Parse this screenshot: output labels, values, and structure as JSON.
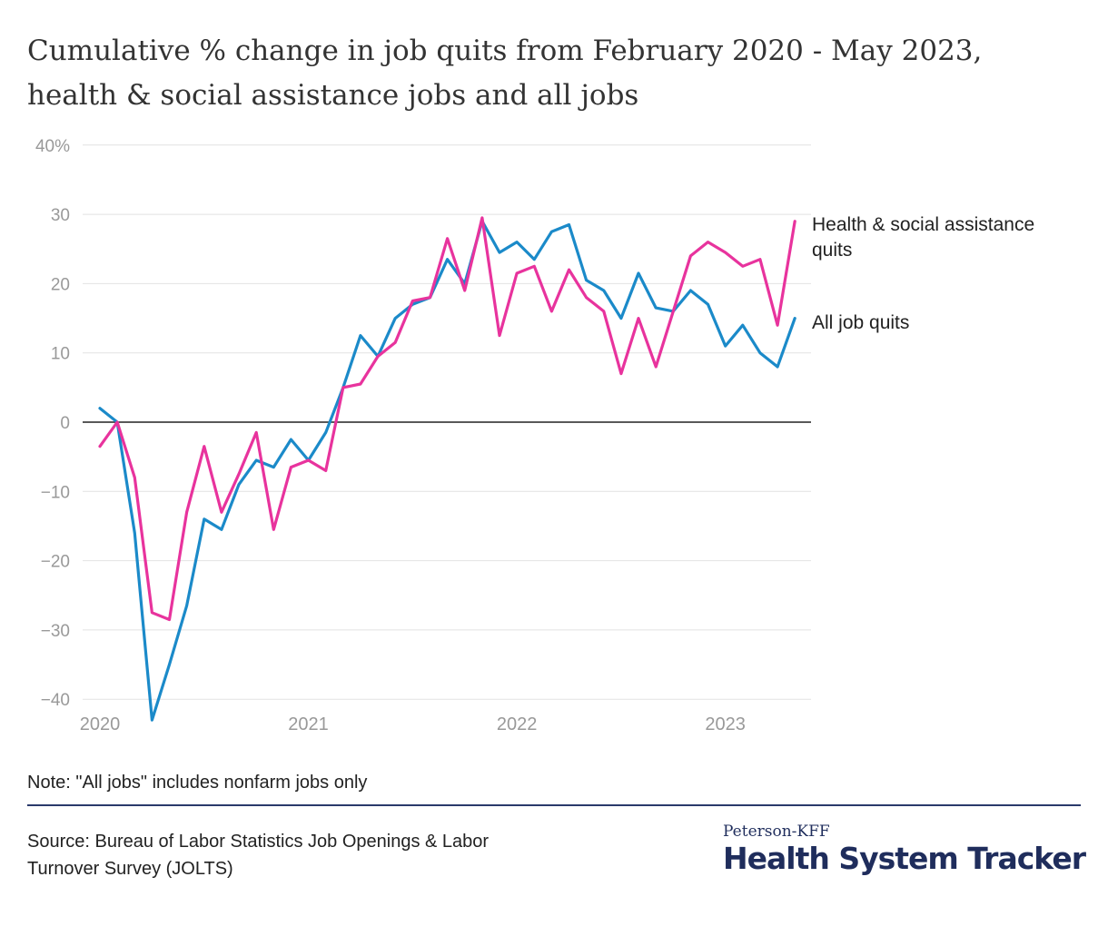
{
  "title": {
    "line1": "Cumulative % change in job quits from February 2020 - May 2023,",
    "line2": "health & social assistance jobs and all jobs"
  },
  "note": "Note: \"All jobs\" includes nonfarm jobs only",
  "source": {
    "line1": "Source: Bureau of Labor Statistics Job Openings & Labor",
    "line2": "Turnover Survey (JOLTS)"
  },
  "brand": {
    "top": "Peterson-KFF",
    "main": "Health System Tracker",
    "color": "#1f2d5c"
  },
  "chart_data": {
    "type": "line",
    "title": "Cumulative % change in job quits from February 2020 - May 2023, health & social assistance jobs and all jobs",
    "xlabel": "",
    "ylabel": "",
    "ylim": [
      -40,
      40
    ],
    "yticks": [
      "40%",
      "30",
      "20",
      "10",
      "0",
      "−10",
      "−20",
      "−30",
      "−40"
    ],
    "ytick_values": [
      40,
      30,
      20,
      10,
      0,
      -10,
      -20,
      -30,
      -40
    ],
    "xticks": [
      "2020",
      "2021",
      "2022",
      "2023"
    ],
    "grid": true,
    "legend": "direct labels at right end of lines",
    "x_start": "2020-01",
    "x_end": "2023-05",
    "x": [
      "2020-01",
      "2020-02",
      "2020-03",
      "2020-04",
      "2020-05",
      "2020-06",
      "2020-07",
      "2020-08",
      "2020-09",
      "2020-10",
      "2020-11",
      "2020-12",
      "2021-01",
      "2021-02",
      "2021-03",
      "2021-04",
      "2021-05",
      "2021-06",
      "2021-07",
      "2021-08",
      "2021-09",
      "2021-10",
      "2021-11",
      "2021-12",
      "2022-01",
      "2022-02",
      "2022-03",
      "2022-04",
      "2022-05",
      "2022-06",
      "2022-07",
      "2022-08",
      "2022-09",
      "2022-10",
      "2022-11",
      "2022-12",
      "2023-01",
      "2023-02",
      "2023-03",
      "2023-04",
      "2023-05"
    ],
    "series": [
      {
        "name": "Health & social assistance quits",
        "label_lines": [
          "Health & social assistance",
          "quits"
        ],
        "color": "#e8339d",
        "values": [
          -3.5,
          0,
          -8,
          -27.5,
          -28.5,
          -13,
          -3.5,
          -13,
          -7.5,
          -1.5,
          -15.5,
          -6.5,
          -5.5,
          -7,
          5,
          5.5,
          9.5,
          11.5,
          17.5,
          18,
          26.5,
          19,
          29.5,
          12.5,
          21.5,
          22.5,
          16,
          22,
          18,
          16,
          7,
          15,
          8,
          16,
          24,
          26,
          24.5,
          22.5,
          23.5,
          14,
          29
        ]
      },
      {
        "name": "All job quits",
        "label_lines": [
          "All job quits"
        ],
        "color": "#1b8ac9",
        "values": [
          2,
          0,
          -16,
          -43,
          -35,
          -26.5,
          -14,
          -15.5,
          -9,
          -5.5,
          -6.5,
          -2.5,
          -5.5,
          -1.5,
          5,
          12.5,
          9.5,
          15,
          17,
          18,
          23.5,
          20,
          29,
          24.5,
          26,
          23.5,
          27.5,
          28.5,
          20.5,
          19,
          15,
          21.5,
          16.5,
          16,
          19,
          17,
          11,
          14,
          10,
          8,
          15
        ]
      }
    ]
  }
}
